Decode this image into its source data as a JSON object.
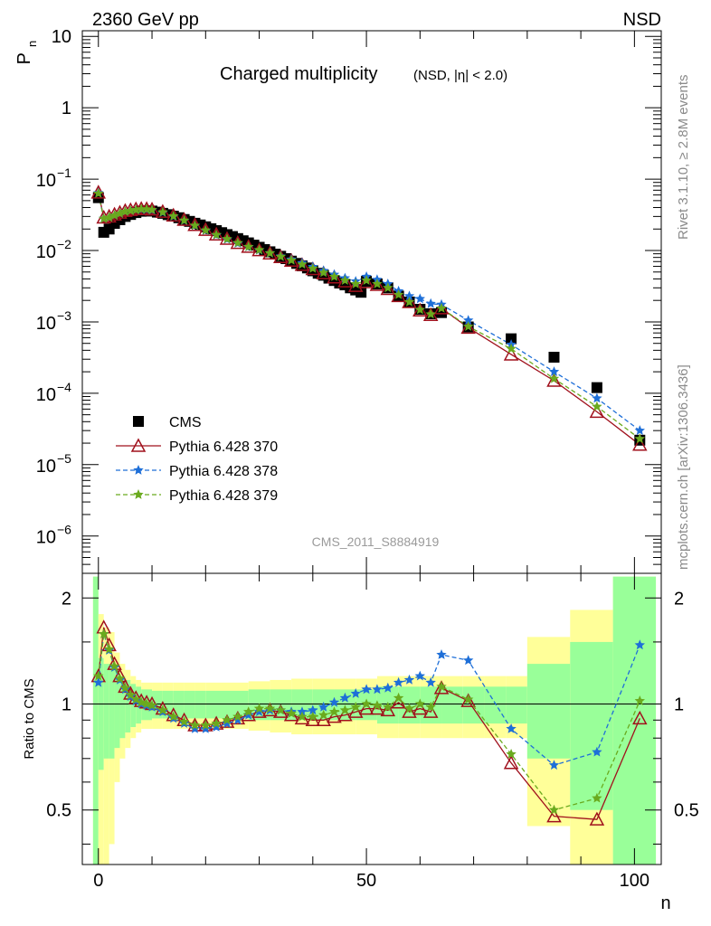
{
  "header": {
    "left": "2360 GeV pp",
    "right": "NSD"
  },
  "side_texts": {
    "rivet": "Rivet 3.1.10, ≥ 2.8M events",
    "mcplots": "mcplots.cern.ch [arXiv:1306.3436]"
  },
  "chart_data": [
    {
      "type": "scatter",
      "title": "Charged multiplicity",
      "title_suffix": "(NSD, |η| < 2.0)",
      "analysis_tag": "CMS_2011_S8884919",
      "ylabel": "P",
      "ylabel_sub": "n",
      "xlim": [
        -3,
        105
      ],
      "ylim": [
        3e-07,
        12
      ],
      "yscale": "log",
      "y_ticks": [
        {
          "v": 10,
          "label": "10"
        },
        {
          "v": 1,
          "label": "1"
        },
        {
          "v": 0.1,
          "base": "10",
          "exp": "−1"
        },
        {
          "v": 0.01,
          "base": "10",
          "exp": "−2"
        },
        {
          "v": 0.001,
          "base": "10",
          "exp": "−3"
        },
        {
          "v": 0.0001,
          "base": "10",
          "exp": "−4"
        },
        {
          "v": 1e-05,
          "base": "10",
          "exp": "−5"
        },
        {
          "v": 1e-06,
          "base": "10",
          "exp": "−6"
        }
      ],
      "legend_position": "bottom-left",
      "series": [
        {
          "name": "CMS",
          "style": "data",
          "color": "#000000",
          "marker": "square",
          "x": [
            0,
            1,
            2,
            3,
            4,
            5,
            6,
            7,
            8,
            9,
            10,
            11,
            12,
            13,
            14,
            15,
            16,
            17,
            18,
            19,
            20,
            21,
            22,
            23,
            24,
            25,
            26,
            27,
            28,
            29,
            30,
            31,
            32,
            33,
            34,
            35,
            36,
            37,
            38,
            39,
            40,
            41,
            42,
            43,
            44,
            45,
            46,
            47,
            48,
            49,
            50,
            52,
            54,
            56,
            58,
            60,
            62,
            64,
            69,
            77,
            85,
            93,
            101
          ],
          "y": [
            0.055,
            0.018,
            0.02,
            0.024,
            0.027,
            0.03,
            0.032,
            0.034,
            0.0355,
            0.036,
            0.0357,
            0.0345,
            0.0332,
            0.0318,
            0.0303,
            0.0288,
            0.0272,
            0.0256,
            0.0241,
            0.0228,
            0.0215,
            0.0202,
            0.019,
            0.0178,
            0.0167,
            0.0157,
            0.0147,
            0.0137,
            0.0128,
            0.0119,
            0.0111,
            0.0103,
            0.0096,
            0.0089,
            0.0083,
            0.0077,
            0.0071,
            0.0066,
            0.0061,
            0.0057,
            0.0052,
            0.0048,
            0.0045,
            0.0041,
            0.0038,
            0.0035,
            0.0033,
            0.003,
            0.0028,
            0.0026,
            0.0037,
            0.0034,
            0.003,
            0.0023,
            0.0019,
            0.0015,
            0.0013,
            0.00135,
            0.00085,
            0.00058,
            0.00032,
            0.00012,
            2.2e-05
          ]
        },
        {
          "name": "Pythia 6.428 370",
          "style": "mc",
          "color": "#a0101c",
          "marker": "triangle",
          "dash": "",
          "x": [
            0,
            1,
            2,
            3,
            4,
            5,
            6,
            7,
            8,
            9,
            10,
            12,
            14,
            16,
            18,
            20,
            22,
            24,
            26,
            28,
            30,
            32,
            34,
            36,
            38,
            40,
            42,
            44,
            46,
            48,
            50,
            52,
            54,
            56,
            58,
            60,
            62,
            64,
            69,
            77,
            85,
            93,
            101
          ],
          "y": [
            0.065,
            0.029,
            0.03,
            0.032,
            0.034,
            0.036,
            0.037,
            0.038,
            0.0385,
            0.0383,
            0.0376,
            0.035,
            0.031,
            0.027,
            0.0228,
            0.0195,
            0.0168,
            0.0146,
            0.0128,
            0.0113,
            0.0101,
            0.0091,
            0.0081,
            0.0072,
            0.0063,
            0.0055,
            0.0048,
            0.0042,
            0.0037,
            0.0032,
            0.0036,
            0.0033,
            0.0029,
            0.0023,
            0.0019,
            0.00145,
            0.00125,
            0.00155,
            0.00083,
            0.00035,
            0.00015,
            5.5e-05,
            1.9e-05
          ]
        },
        {
          "name": "Pythia 6.428 378",
          "style": "mc",
          "color": "#1e6fd8",
          "marker": "star",
          "dash": "5,3",
          "x": [
            0,
            1,
            2,
            3,
            4,
            5,
            6,
            7,
            8,
            9,
            10,
            12,
            14,
            16,
            18,
            20,
            22,
            24,
            26,
            28,
            30,
            32,
            34,
            36,
            38,
            40,
            42,
            44,
            46,
            48,
            50,
            52,
            54,
            56,
            58,
            60,
            62,
            64,
            69,
            77,
            85,
            93,
            101
          ],
          "y": [
            0.064,
            0.028,
            0.029,
            0.031,
            0.033,
            0.035,
            0.036,
            0.037,
            0.0375,
            0.0374,
            0.0368,
            0.034,
            0.03,
            0.0262,
            0.0222,
            0.019,
            0.0164,
            0.0143,
            0.0126,
            0.0112,
            0.0101,
            0.0092,
            0.0083,
            0.0075,
            0.0067,
            0.0059,
            0.0052,
            0.0046,
            0.0041,
            0.0037,
            0.0043,
            0.0039,
            0.0034,
            0.0027,
            0.0023,
            0.0021,
            0.0018,
            0.00175,
            0.00105,
            0.00048,
            0.0002,
            8.5e-05,
            3e-05
          ]
        },
        {
          "name": "Pythia 6.428 379",
          "style": "mc",
          "color": "#6aaa1e",
          "marker": "star",
          "dash": "5,3",
          "x": [
            0,
            1,
            2,
            3,
            4,
            5,
            6,
            7,
            8,
            9,
            10,
            12,
            14,
            16,
            18,
            20,
            22,
            24,
            26,
            28,
            30,
            32,
            34,
            36,
            38,
            40,
            42,
            44,
            46,
            48,
            50,
            52,
            54,
            56,
            58,
            60,
            62,
            64,
            69,
            77,
            85,
            93,
            101
          ],
          "y": [
            0.063,
            0.028,
            0.029,
            0.031,
            0.033,
            0.035,
            0.036,
            0.037,
            0.038,
            0.0378,
            0.0371,
            0.0344,
            0.0303,
            0.0264,
            0.0224,
            0.0192,
            0.0166,
            0.0145,
            0.0128,
            0.0113,
            0.0102,
            0.0092,
            0.0082,
            0.0073,
            0.0064,
            0.0056,
            0.0049,
            0.0043,
            0.0038,
            0.0034,
            0.0038,
            0.0034,
            0.003,
            0.0024,
            0.0019,
            0.00148,
            0.00128,
            0.00155,
            0.00086,
            0.00042,
            0.00016,
            6.5e-05,
            2.3e-05
          ]
        }
      ]
    },
    {
      "type": "line",
      "ylabel": "Ratio to CMS",
      "xlabel": "n",
      "xlim": [
        -3,
        105
      ],
      "ylim": [
        0.35,
        2.35
      ],
      "yscale": "log",
      "y_ticks": [
        {
          "v": 0.5,
          "label": "0.5"
        },
        {
          "v": 1,
          "label": "1"
        },
        {
          "v": 2,
          "label": "2"
        }
      ],
      "x_ticks": [
        {
          "v": 0,
          "label": "0"
        },
        {
          "v": 50,
          "label": "50"
        },
        {
          "v": 100,
          "label": "100"
        }
      ],
      "bands": {
        "stat_color": "#99ff99",
        "total_color": "#ffff99",
        "edges": [
          -1,
          0,
          1,
          2,
          3,
          4,
          5,
          6,
          7,
          8,
          10,
          12,
          14,
          16,
          18,
          20,
          24,
          28,
          32,
          36,
          40,
          44,
          48,
          52,
          56,
          60,
          64,
          68,
          72,
          76,
          80,
          88,
          96,
          104
        ],
        "green_half": [
          1.3,
          0.35,
          0.3,
          0.3,
          0.25,
          0.2,
          0.17,
          0.14,
          0.12,
          0.1,
          0.09,
          0.09,
          0.09,
          0.09,
          0.09,
          0.09,
          0.09,
          0.1,
          0.1,
          0.1,
          0.1,
          0.1,
          0.1,
          0.12,
          0.12,
          0.12,
          0.12,
          0.12,
          0.12,
          0.12,
          0.3,
          0.5,
          1.3
        ],
        "yellow_half": [
          1.3,
          0.8,
          0.65,
          0.6,
          0.4,
          0.3,
          0.25,
          0.2,
          0.17,
          0.15,
          0.15,
          0.15,
          0.15,
          0.15,
          0.15,
          0.15,
          0.15,
          0.16,
          0.17,
          0.18,
          0.18,
          0.18,
          0.18,
          0.2,
          0.2,
          0.2,
          0.2,
          0.2,
          0.2,
          0.2,
          0.55,
          0.85,
          1.3
        ]
      },
      "series": [
        {
          "name": "Pythia 6.428 370",
          "color": "#a0101c",
          "marker": "triangle",
          "dash": "",
          "x": [
            0,
            1,
            2,
            3,
            4,
            5,
            6,
            7,
            8,
            9,
            10,
            12,
            14,
            16,
            18,
            20,
            22,
            24,
            26,
            28,
            30,
            32,
            34,
            36,
            38,
            40,
            42,
            44,
            46,
            48,
            50,
            52,
            54,
            56,
            58,
            60,
            62,
            64,
            69,
            77,
            85,
            93,
            101
          ],
          "y": [
            1.2,
            1.65,
            1.47,
            1.3,
            1.2,
            1.12,
            1.07,
            1.04,
            1.02,
            1.01,
            1.0,
            0.97,
            0.93,
            0.9,
            0.87,
            0.87,
            0.88,
            0.89,
            0.91,
            0.93,
            0.95,
            0.96,
            0.95,
            0.93,
            0.91,
            0.9,
            0.9,
            0.92,
            0.93,
            0.95,
            0.97,
            0.97,
            0.96,
            1.01,
            0.95,
            0.97,
            0.95,
            1.11,
            1.02,
            0.68,
            0.48,
            0.47,
            0.91
          ]
        },
        {
          "name": "Pythia 6.428 378",
          "color": "#1e6fd8",
          "marker": "star",
          "dash": "5,3",
          "x": [
            0,
            1,
            2,
            3,
            4,
            5,
            6,
            7,
            8,
            9,
            10,
            12,
            14,
            16,
            18,
            20,
            22,
            24,
            26,
            28,
            30,
            32,
            34,
            36,
            38,
            40,
            42,
            44,
            46,
            48,
            50,
            52,
            54,
            56,
            58,
            60,
            62,
            64,
            69,
            77,
            85,
            93,
            101
          ],
          "y": [
            1.15,
            1.58,
            1.42,
            1.27,
            1.17,
            1.1,
            1.05,
            1.02,
            1.0,
            0.99,
            0.98,
            0.95,
            0.91,
            0.88,
            0.85,
            0.85,
            0.86,
            0.88,
            0.9,
            0.93,
            0.95,
            0.96,
            0.96,
            0.95,
            0.95,
            0.96,
            0.98,
            1.01,
            1.04,
            1.07,
            1.1,
            1.1,
            1.11,
            1.15,
            1.17,
            1.2,
            1.15,
            1.38,
            1.33,
            0.85,
            0.67,
            0.73,
            1.47
          ]
        },
        {
          "name": "Pythia 6.428 379",
          "color": "#6aaa1e",
          "marker": "star",
          "dash": "5,3",
          "x": [
            0,
            1,
            2,
            3,
            4,
            5,
            6,
            7,
            8,
            9,
            10,
            12,
            14,
            16,
            18,
            20,
            22,
            24,
            26,
            28,
            30,
            32,
            34,
            36,
            38,
            40,
            42,
            44,
            46,
            48,
            50,
            52,
            54,
            56,
            58,
            60,
            62,
            64,
            69,
            77,
            85,
            93,
            101
          ],
          "y": [
            1.2,
            1.58,
            1.43,
            1.28,
            1.18,
            1.11,
            1.06,
            1.03,
            1.01,
            1.0,
            0.99,
            0.96,
            0.92,
            0.89,
            0.87,
            0.87,
            0.88,
            0.9,
            0.92,
            0.95,
            0.97,
            0.97,
            0.96,
            0.94,
            0.92,
            0.92,
            0.93,
            0.95,
            0.96,
            0.98,
            1.0,
            0.99,
            0.98,
            1.04,
            0.97,
            1.0,
            0.98,
            1.12,
            1.03,
            0.72,
            0.5,
            0.54,
            1.02
          ]
        }
      ]
    }
  ]
}
